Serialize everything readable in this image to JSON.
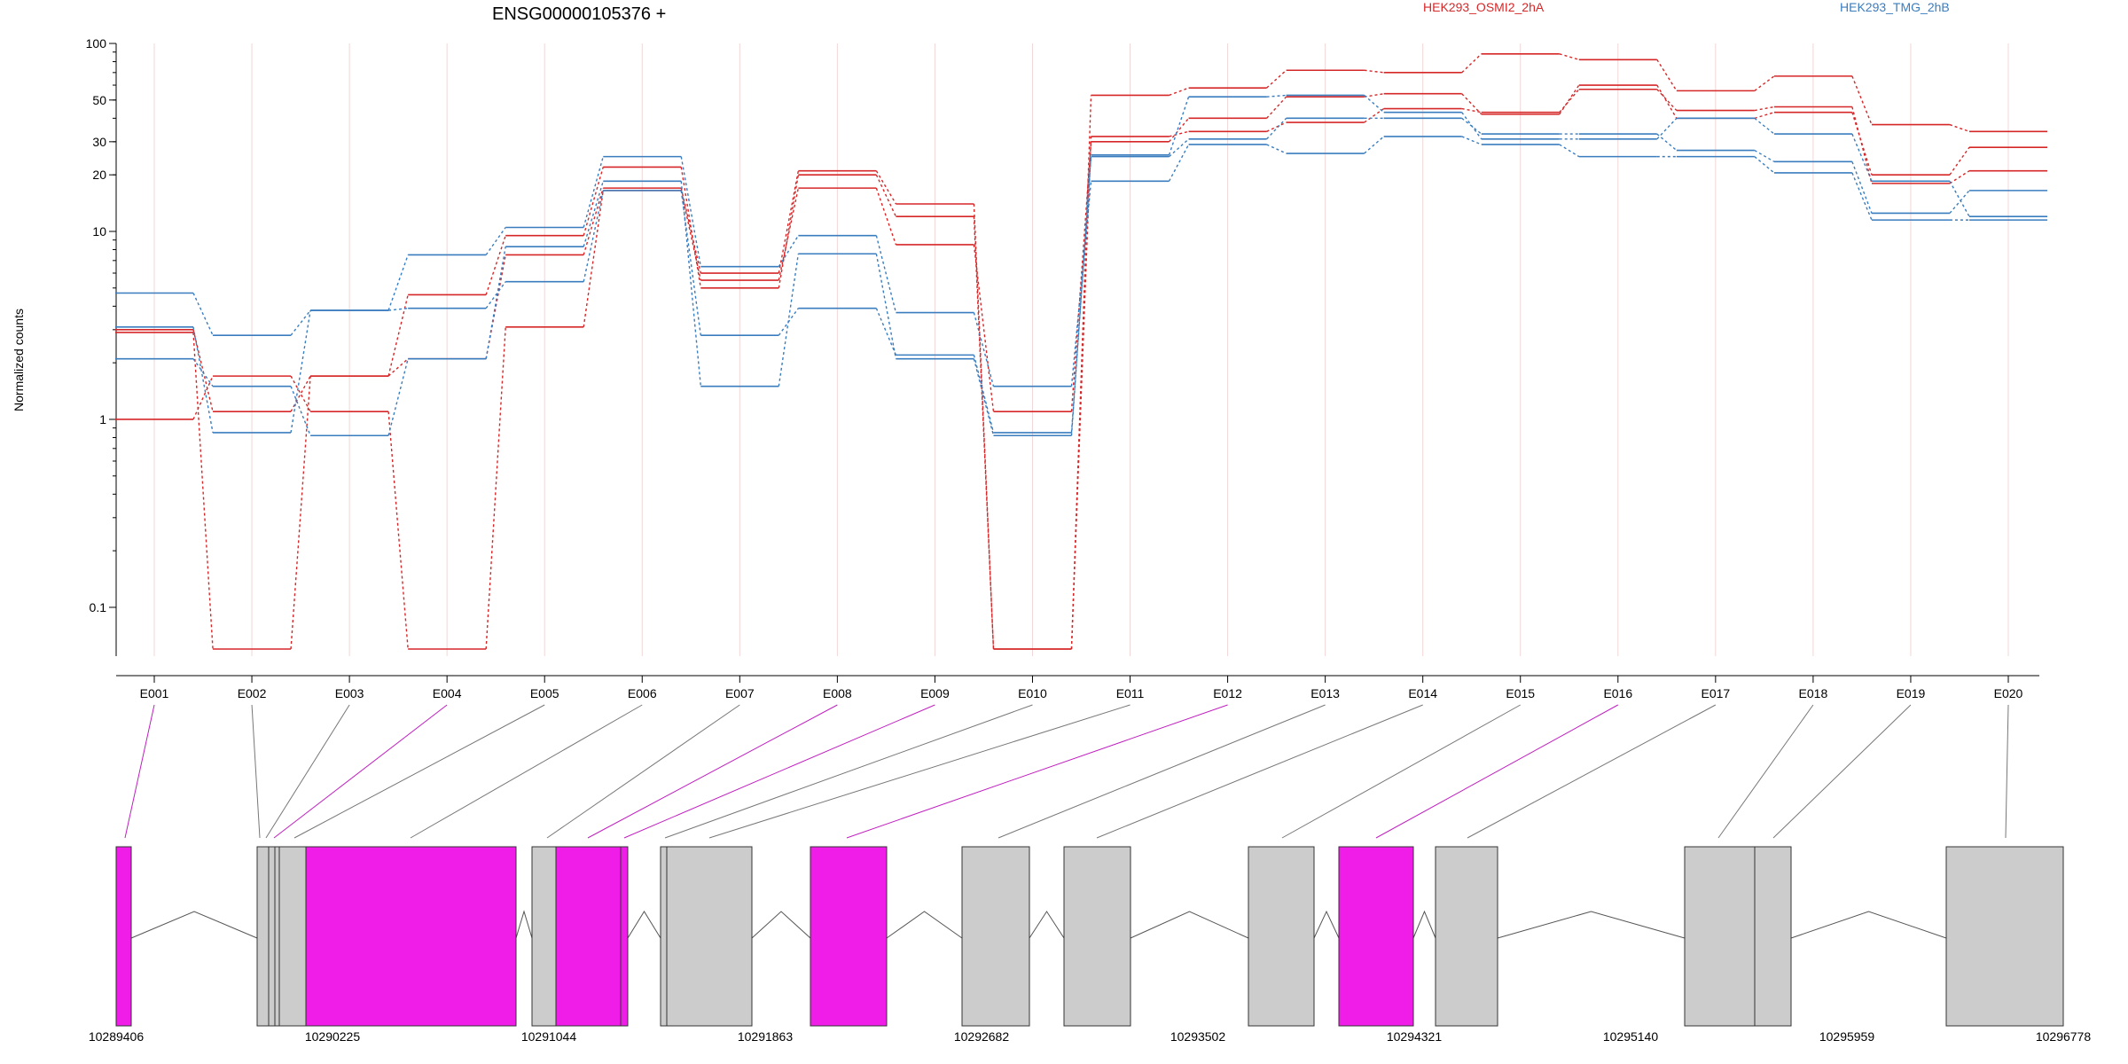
{
  "chart_data": {
    "type": "line",
    "title": "ENSG00000105376 +",
    "ylabel": "Normalized counts",
    "yscale": "log",
    "yticks": [
      0.1,
      1,
      10,
      20,
      30,
      50,
      100
    ],
    "ytick_labels": [
      "0.1",
      "1",
      "10",
      "20",
      "30",
      "50",
      "100"
    ],
    "categories": [
      "E001",
      "E002",
      "E003",
      "E004",
      "E005",
      "E006",
      "E007",
      "E008",
      "E009",
      "E010",
      "E011",
      "E012",
      "E013",
      "E014",
      "E015",
      "E016",
      "E017",
      "E018",
      "E019",
      "E020"
    ],
    "legend": [
      {
        "name": "HEK293_OSMI2_2hA",
        "color": "#d62728"
      },
      {
        "name": "HEK293_TMG_2hB",
        "color": "#3a7dbf"
      }
    ],
    "series": [
      {
        "group": "HEK293_OSMI2_2hA",
        "color": "#d62728",
        "values": [
          2.9,
          0.06,
          1.7,
          4.6,
          9.5,
          22,
          5.0,
          20,
          12,
          0.06,
          32,
          34,
          38,
          45,
          43,
          57,
          44,
          46,
          18,
          21
        ]
      },
      {
        "group": "HEK293_OSMI2_2hA",
        "color": "#d62728",
        "values": [
          1.0,
          1.7,
          1.1,
          0.06,
          3.1,
          16.5,
          5.5,
          17,
          8.5,
          1.1,
          30,
          40,
          52,
          54,
          42,
          60,
          40,
          43,
          20,
          28
        ]
      },
      {
        "group": "HEK293_OSMI2_2hA",
        "color": "#d62728",
        "values": [
          3.0,
          1.1,
          1.7,
          2.1,
          7.5,
          17,
          6.0,
          21,
          14,
          0.06,
          53,
          58,
          72,
          70,
          88,
          82,
          56,
          67,
          37,
          34
        ]
      },
      {
        "group": "HEK293_TMG_2hB",
        "color": "#3a7dbf",
        "values": [
          4.7,
          2.8,
          3.8,
          7.5,
          10.5,
          25,
          6.5,
          9.5,
          3.7,
          1.5,
          18.5,
          29,
          26,
          32,
          29,
          25,
          25,
          20.5,
          11.5,
          11.5
        ]
      },
      {
        "group": "HEK293_TMG_2hB",
        "color": "#3a7dbf",
        "values": [
          3.1,
          0.85,
          3.8,
          3.9,
          5.4,
          16.5,
          2.8,
          3.9,
          2.2,
          0.85,
          25,
          31,
          40,
          40,
          33,
          33,
          27,
          23.5,
          12.5,
          16.5
        ]
      },
      {
        "group": "HEK293_TMG_2hB",
        "color": "#3a7dbf",
        "values": [
          2.1,
          1.5,
          0.82,
          2.1,
          8.3,
          18.5,
          1.5,
          7.6,
          2.1,
          0.82,
          25.5,
          52,
          53,
          43,
          31,
          31,
          40,
          33,
          18.5,
          12
        ]
      }
    ]
  },
  "gene_model": {
    "coordinate_labels": [
      "10289406",
      "10290225",
      "10291044",
      "10291863",
      "10292682",
      "10293502",
      "10294321",
      "10295140",
      "10295959",
      "10296778"
    ],
    "significant_exons": [
      "E001",
      "E004",
      "E008",
      "E009",
      "E012",
      "E016"
    ],
    "colors": {
      "significant": "#f01ce8",
      "normal": "#cccccc"
    }
  }
}
